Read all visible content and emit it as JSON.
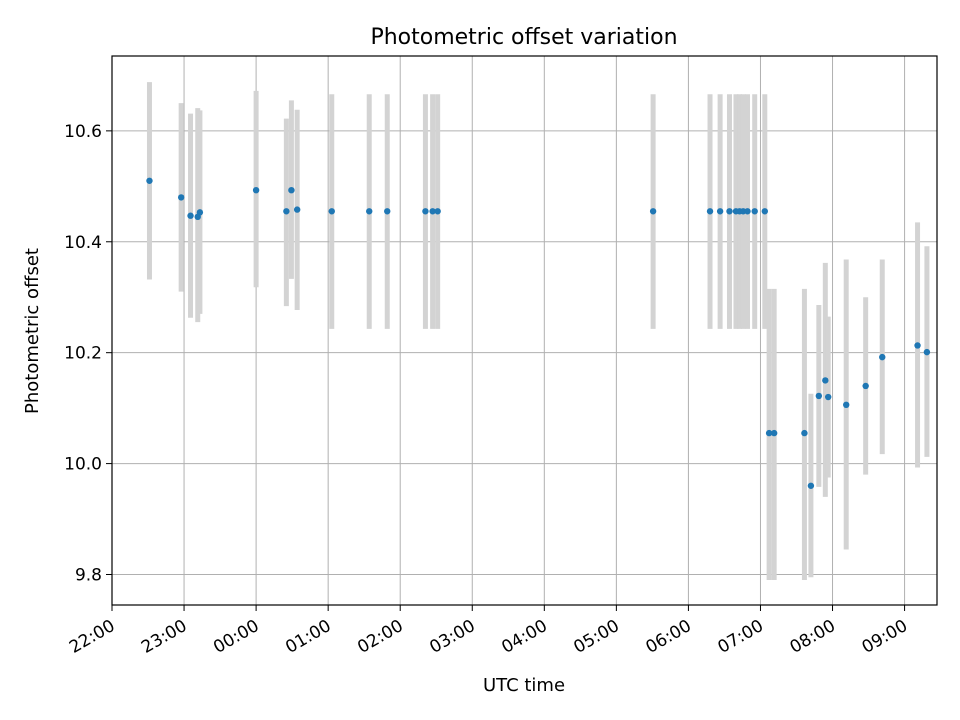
{
  "chart_data": {
    "type": "scatter",
    "title": "Photometric offset variation",
    "xlabel": "UTC time",
    "ylabel": "Photometric offset",
    "x_unit": "hours after 22:00 UTC",
    "xlim": [
      0.0,
      11.45
    ],
    "ylim": [
      9.745,
      10.735
    ],
    "x_ticks": [
      {
        "value": 0,
        "label": "22:00"
      },
      {
        "value": 1,
        "label": "23:00"
      },
      {
        "value": 2,
        "label": "00:00"
      },
      {
        "value": 3,
        "label": "01:00"
      },
      {
        "value": 4,
        "label": "02:00"
      },
      {
        "value": 5,
        "label": "03:00"
      },
      {
        "value": 6,
        "label": "04:00"
      },
      {
        "value": 7,
        "label": "05:00"
      },
      {
        "value": 8,
        "label": "06:00"
      },
      {
        "value": 9,
        "label": "07:00"
      },
      {
        "value": 10,
        "label": "08:00"
      },
      {
        "value": 11,
        "label": "09:00"
      }
    ],
    "y_ticks": [
      {
        "value": 9.8,
        "label": "9.8"
      },
      {
        "value": 10.0,
        "label": "10.0"
      },
      {
        "value": 10.2,
        "label": "10.2"
      },
      {
        "value": 10.4,
        "label": "10.4"
      },
      {
        "value": 10.6,
        "label": "10.6"
      }
    ],
    "grid": true,
    "colors": {
      "points": "#1f77b4",
      "errorbars": "#d3d3d3",
      "grid": "#b0b0b0"
    },
    "points": [
      {
        "x": 0.52,
        "y": 10.51,
        "lo": 10.332,
        "hi": 10.688
      },
      {
        "x": 0.96,
        "y": 10.48,
        "lo": 10.31,
        "hi": 10.65
      },
      {
        "x": 1.09,
        "y": 10.447,
        "lo": 10.263,
        "hi": 10.631
      },
      {
        "x": 1.19,
        "y": 10.445,
        "lo": 10.255,
        "hi": 10.641
      },
      {
        "x": 1.22,
        "y": 10.453,
        "lo": 10.27,
        "hi": 10.637
      },
      {
        "x": 2.0,
        "y": 10.493,
        "lo": 10.318,
        "hi": 10.672
      },
      {
        "x": 2.42,
        "y": 10.455,
        "lo": 10.284,
        "hi": 10.622
      },
      {
        "x": 2.49,
        "y": 10.493,
        "lo": 10.333,
        "hi": 10.655
      },
      {
        "x": 2.57,
        "y": 10.458,
        "lo": 10.277,
        "hi": 10.638
      },
      {
        "x": 3.05,
        "y": 10.455,
        "lo": 10.243,
        "hi": 10.666
      },
      {
        "x": 3.57,
        "y": 10.455,
        "lo": 10.243,
        "hi": 10.666
      },
      {
        "x": 3.82,
        "y": 10.455,
        "lo": 10.243,
        "hi": 10.666
      },
      {
        "x": 4.35,
        "y": 10.455,
        "lo": 10.243,
        "hi": 10.666
      },
      {
        "x": 4.45,
        "y": 10.455,
        "lo": 10.243,
        "hi": 10.666
      },
      {
        "x": 4.52,
        "y": 10.455,
        "lo": 10.243,
        "hi": 10.666
      },
      {
        "x": 7.51,
        "y": 10.455,
        "lo": 10.243,
        "hi": 10.666
      },
      {
        "x": 8.3,
        "y": 10.455,
        "lo": 10.243,
        "hi": 10.666
      },
      {
        "x": 8.44,
        "y": 10.455,
        "lo": 10.243,
        "hi": 10.666
      },
      {
        "x": 8.57,
        "y": 10.455,
        "lo": 10.243,
        "hi": 10.666
      },
      {
        "x": 8.66,
        "y": 10.455,
        "lo": 10.243,
        "hi": 10.666
      },
      {
        "x": 8.71,
        "y": 10.455,
        "lo": 10.243,
        "hi": 10.666
      },
      {
        "x": 8.76,
        "y": 10.455,
        "lo": 10.243,
        "hi": 10.666
      },
      {
        "x": 8.82,
        "y": 10.455,
        "lo": 10.243,
        "hi": 10.666
      },
      {
        "x": 8.92,
        "y": 10.455,
        "lo": 10.243,
        "hi": 10.666
      },
      {
        "x": 9.06,
        "y": 10.455,
        "lo": 10.243,
        "hi": 10.666
      },
      {
        "x": 9.12,
        "y": 10.055,
        "lo": 9.79,
        "hi": 10.315
      },
      {
        "x": 9.19,
        "y": 10.055,
        "lo": 9.79,
        "hi": 10.315
      },
      {
        "x": 9.61,
        "y": 10.055,
        "lo": 9.79,
        "hi": 10.315
      },
      {
        "x": 9.7,
        "y": 9.96,
        "lo": 9.795,
        "hi": 10.126
      },
      {
        "x": 9.81,
        "y": 10.122,
        "lo": 9.958,
        "hi": 10.286
      },
      {
        "x": 9.9,
        "y": 10.15,
        "lo": 9.94,
        "hi": 10.362
      },
      {
        "x": 9.94,
        "y": 10.12,
        "lo": 9.975,
        "hi": 10.265
      },
      {
        "x": 10.19,
        "y": 10.106,
        "lo": 9.845,
        "hi": 10.368
      },
      {
        "x": 10.46,
        "y": 10.14,
        "lo": 9.98,
        "hi": 10.3
      },
      {
        "x": 10.69,
        "y": 10.192,
        "lo": 10.017,
        "hi": 10.368
      },
      {
        "x": 11.18,
        "y": 10.213,
        "lo": 9.993,
        "hi": 10.435
      },
      {
        "x": 11.31,
        "y": 10.201,
        "lo": 10.012,
        "hi": 10.392
      }
    ]
  }
}
